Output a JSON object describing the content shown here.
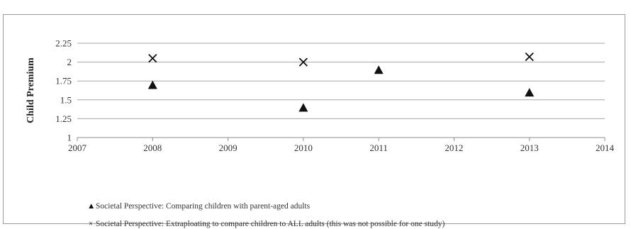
{
  "chart_data": {
    "type": "scatter",
    "title": "",
    "xlabel": "",
    "ylabel": "Child Premium",
    "xlim": [
      2007,
      2014
    ],
    "ylim": [
      1,
      2.25
    ],
    "xticks": [
      "2007",
      "2008",
      "2009",
      "2010",
      "2011",
      "2012",
      "2013",
      "2014"
    ],
    "yticks": [
      "1",
      "1.25",
      "1.5",
      "1.75",
      "2",
      "2.25"
    ],
    "grid": "horizontal",
    "legend_position": "bottom",
    "series": [
      {
        "name": "Societal Perspective: Comparing children with parent-aged adults",
        "marker": "triangle",
        "legend_marker": "▲",
        "color": "#111111",
        "points": [
          {
            "x": 2008,
            "y": 1.7
          },
          {
            "x": 2010,
            "y": 1.4
          },
          {
            "x": 2011,
            "y": 1.9
          },
          {
            "x": 2013,
            "y": 1.6
          }
        ]
      },
      {
        "name": "Societal Perspective: Extraploating to compare children to ALL adults (this was not possible for one study)",
        "marker": "x",
        "legend_marker": "×",
        "color": "#111111",
        "points": [
          {
            "x": 2008,
            "y": 2.05
          },
          {
            "x": 2010,
            "y": 2.0
          },
          {
            "x": 2013,
            "y": 2.07
          }
        ]
      }
    ]
  }
}
